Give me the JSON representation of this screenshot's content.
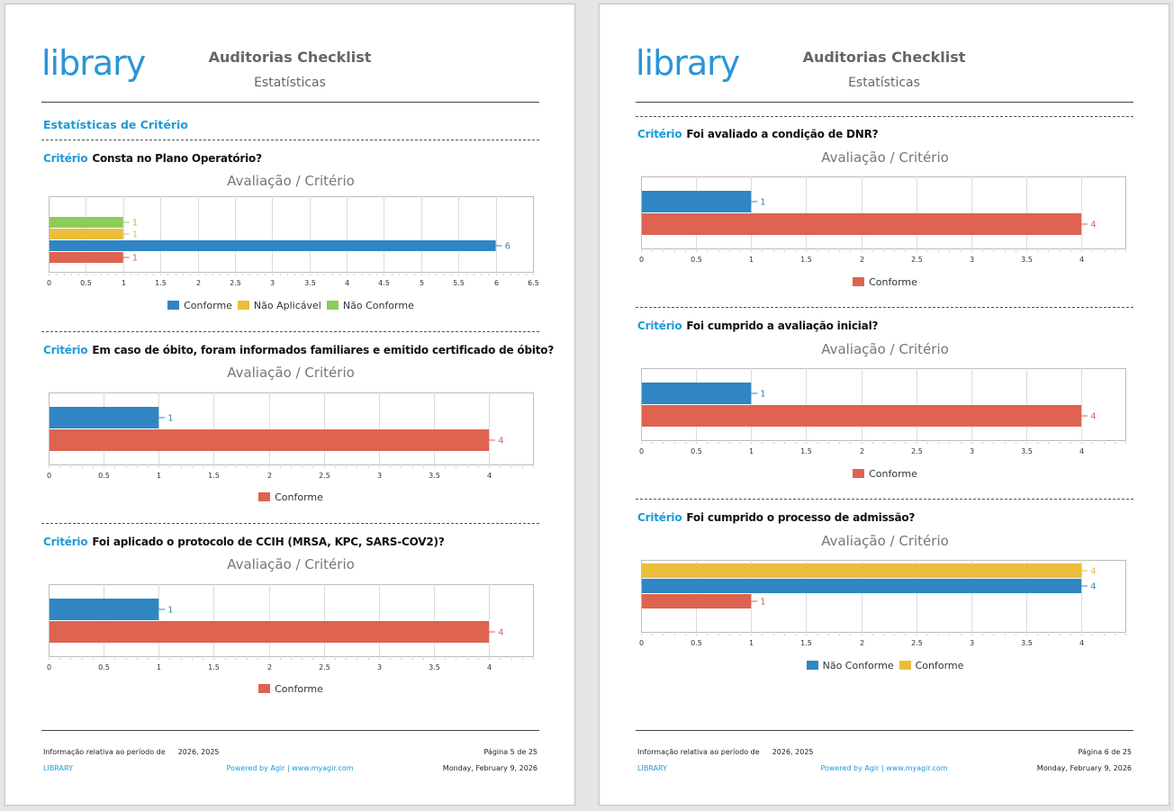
{
  "colors": {
    "blue": "#2f86c3",
    "red": "#de6350",
    "yellow": "#eabd3b",
    "green": "#8ccc5a",
    "accent": "#1e9ad6"
  },
  "pages": [
    {
      "logo": "library",
      "title": "Auditorias Checklist",
      "subtitle": "Estatísticas",
      "section_title": "Estatísticas de Critério",
      "footer": {
        "info_label": "Informação relativa ao período de",
        "period": "2026, 2025",
        "page": "Página 5 de 25",
        "brand": "LIBRARY",
        "powered": "Powered by Agir | www.myagir.com",
        "date": "Monday, February 9, 2026"
      }
    },
    {
      "logo": "library",
      "title": "Auditorias Checklist",
      "subtitle": "Estatísticas",
      "footer": {
        "info_label": "Informação relativa ao período de",
        "period": "2026, 2025",
        "page": "Página 6 de 25",
        "brand": "LIBRARY",
        "powered": "Powered by Agir | www.myagir.com",
        "date": "Monday, February 9, 2026"
      }
    }
  ],
  "criteria": [
    {
      "label": "Critério",
      "question": "Consta no Plano Operatório?"
    },
    {
      "label": "Critério",
      "question": "Em caso de óbito, foram informados familiares e emitido certificado de óbito?"
    },
    {
      "label": "Critério",
      "question": "Foi aplicado o protocolo de CCIH (MRSA, KPC, SARS-COV2)?"
    },
    {
      "label": "Critério",
      "question": "Foi avaliado a condição de DNR?"
    },
    {
      "label": "Critério",
      "question": "Foi cumprido a avaliação inicial?"
    },
    {
      "label": "Critério",
      "question": "Foi cumprido o processo de admissão?"
    }
  ],
  "chart_data": [
    {
      "type": "bar",
      "orientation": "horizontal",
      "title": "Avaliação / Critério",
      "xlim": [
        0,
        6.5
      ],
      "ticks": [
        "0",
        "0.5",
        "1",
        "1.5",
        "2",
        "2.5",
        "3",
        "3.5",
        "4",
        "4.5",
        "5",
        "5.5",
        "6",
        "6.5"
      ],
      "legend": [
        {
          "name": "Conforme",
          "color": "#2f86c3"
        },
        {
          "name": "Não Aplicável",
          "color": "#eabd3b"
        },
        {
          "name": "Não Conforme",
          "color": "#8ccc5a"
        }
      ],
      "bars": [
        {
          "value": 1,
          "label": "1",
          "color": "#8ccc5a"
        },
        {
          "value": 1,
          "label": "1",
          "color": "#eabd3b"
        },
        {
          "value": 6,
          "label": "6",
          "color": "#2f86c3"
        },
        {
          "value": 1,
          "label": "1",
          "color": "#de6350"
        }
      ]
    },
    {
      "type": "bar",
      "orientation": "horizontal",
      "title": "Avaliação / Critério",
      "xlim": [
        0,
        4.4
      ],
      "ticks": [
        "0",
        "0.5",
        "1",
        "1.5",
        "2",
        "2.5",
        "3",
        "3.5",
        "4"
      ],
      "legend": [
        {
          "name": "Conforme",
          "color": "#de6350"
        }
      ],
      "bars": [
        {
          "value": 1,
          "label": "1",
          "color": "#2f86c3"
        },
        {
          "value": 4,
          "label": "4",
          "color": "#de6350"
        }
      ]
    },
    {
      "type": "bar",
      "orientation": "horizontal",
      "title": "Avaliação / Critério",
      "xlim": [
        0,
        4.4
      ],
      "ticks": [
        "0",
        "0.5",
        "1",
        "1.5",
        "2",
        "2.5",
        "3",
        "3.5",
        "4"
      ],
      "legend": [
        {
          "name": "Conforme",
          "color": "#de6350"
        }
      ],
      "bars": [
        {
          "value": 1,
          "label": "1",
          "color": "#2f86c3"
        },
        {
          "value": 4,
          "label": "4",
          "color": "#de6350"
        }
      ]
    },
    {
      "type": "bar",
      "orientation": "horizontal",
      "title": "Avaliação / Critério",
      "xlim": [
        0,
        4.4
      ],
      "ticks": [
        "0",
        "0.5",
        "1",
        "1.5",
        "2",
        "2.5",
        "3",
        "3.5",
        "4"
      ],
      "legend": [
        {
          "name": "Conforme",
          "color": "#de6350"
        }
      ],
      "bars": [
        {
          "value": 1,
          "label": "1",
          "color": "#2f86c3"
        },
        {
          "value": 4,
          "label": "4",
          "color": "#de6350"
        }
      ]
    },
    {
      "type": "bar",
      "orientation": "horizontal",
      "title": "Avaliação / Critério",
      "xlim": [
        0,
        4.4
      ],
      "ticks": [
        "0",
        "0.5",
        "1",
        "1.5",
        "2",
        "2.5",
        "3",
        "3.5",
        "4"
      ],
      "legend": [
        {
          "name": "Conforme",
          "color": "#de6350"
        }
      ],
      "bars": [
        {
          "value": 1,
          "label": "1",
          "color": "#2f86c3"
        },
        {
          "value": 4,
          "label": "4",
          "color": "#de6350"
        }
      ]
    },
    {
      "type": "bar",
      "orientation": "horizontal",
      "title": "Avaliação / Critério",
      "xlim": [
        0,
        4.4
      ],
      "ticks": [
        "0",
        "0.5",
        "1",
        "1.5",
        "2",
        "2.5",
        "3",
        "3.5",
        "4"
      ],
      "legend": [
        {
          "name": "Não Conforme",
          "color": "#2f86c3"
        },
        {
          "name": "Conforme",
          "color": "#eabd3b"
        }
      ],
      "bars": [
        {
          "value": 4,
          "label": "4",
          "color": "#eabd3b"
        },
        {
          "value": 4,
          "label": "4",
          "color": "#2f86c3"
        },
        {
          "value": 1,
          "label": "1",
          "color": "#de6350"
        }
      ]
    }
  ]
}
